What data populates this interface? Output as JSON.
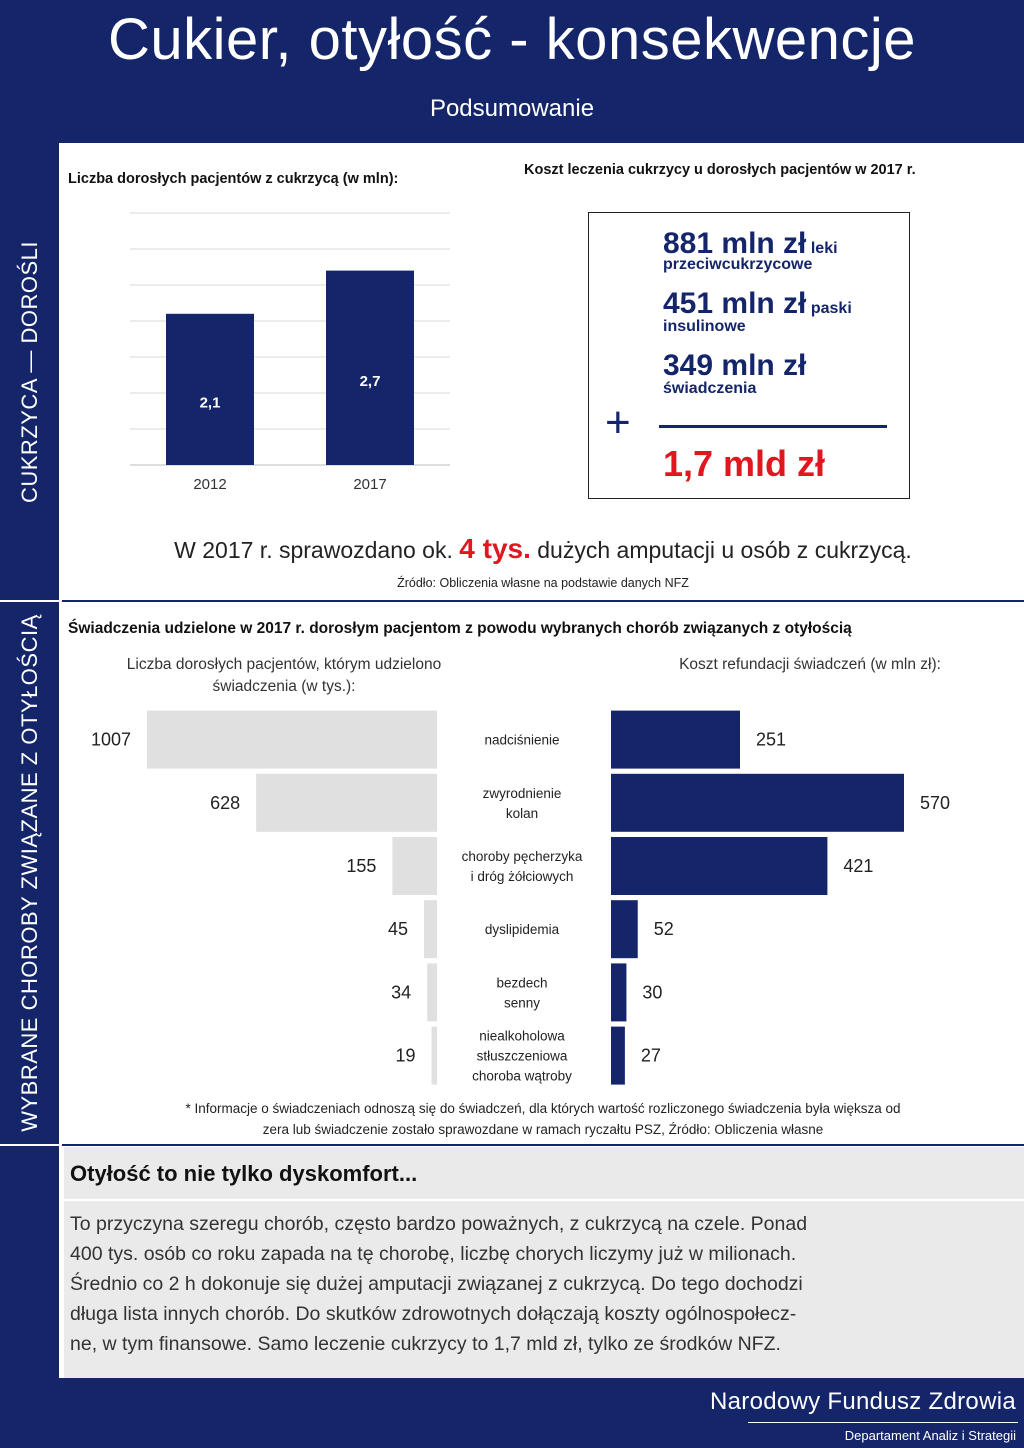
{
  "header": {
    "title": "Cukier, otyłość - konsekwencje",
    "subtitle": "Podsumowanie"
  },
  "sidebar": {
    "section1": "CUKRZYCA — DOROŚLI",
    "section2": "WYBRANE CHOROBY ZWIĄZANE Z OTYŁOŚCIĄ"
  },
  "diabetes": {
    "patients_title": "Liczba dorosłych pacjentów z cukrzycą (w mln):",
    "cost_title": "Koszt leczenia cukrzycy u dorosłych pacjentów w 2017 r.",
    "costs": [
      {
        "amount": "881 mln zł",
        "label_a": "leki",
        "label_b": "przeciwcukrzycowe"
      },
      {
        "amount": "451 mln zł",
        "label_a": "paski",
        "label_b": "insulinowe"
      },
      {
        "amount": "349 mln zł",
        "label_a": "",
        "label_b": "świadczenia"
      }
    ],
    "total": "1,7 mld zł",
    "amputation_before": "W 2017 r. sprawozdano ok.",
    "amputation_value": "4 tys.",
    "amputation_after": "dużych amputacji u osób z cukrzycą.",
    "source": "Źródło: Obliczenia własne na podstawie danych NFZ"
  },
  "obesity": {
    "title": "Świadczenia udzielone w 2017 r. dorosłym pacjentom z powodu wybranych chorób związanych z otyłością",
    "left_header_1": "Liczba dorosłych pacjentów, którym udzielono",
    "left_header_2": "świadczenia (w tys.):",
    "right_header": "Koszt refundacji świadczeń (w mln zł):",
    "footnote_1": "* Informacje o świadczeniach odnoszą się do świadczeń, dla których wartość rozliczonego świadczenia była większa od",
    "footnote_2": "zera lub świadczenie zostało sprawozdane w ramach ryczałtu PSZ,  Źródło: Obliczenia własne"
  },
  "chart_data": [
    {
      "type": "bar",
      "title": "Liczba dorosłych pacjentów z cukrzycą (w mln):",
      "categories": [
        "2012",
        "2017"
      ],
      "values": [
        2.1,
        2.7
      ],
      "value_labels": [
        "2,1",
        "2,7"
      ],
      "ylim": [
        0,
        3.5
      ],
      "grid": true,
      "colors": [
        "#15256a"
      ]
    },
    {
      "type": "bar",
      "orientation": "horizontal-butterfly",
      "title": "Świadczenia udzielone w 2017 r. dorosłym pacjentom z powodu wybranych chorób związanych z otyłością",
      "categories": [
        [
          "nadciśnienie"
        ],
        [
          "zwyrodnienie",
          "kolan"
        ],
        [
          "choroby pęcherzyka",
          "i dróg żółciowych"
        ],
        [
          "dyslipidemia"
        ],
        [
          "bezdech",
          "senny"
        ],
        [
          "niealkoholowa",
          "stłuszczeniowa",
          "choroba wątroby"
        ]
      ],
      "series": [
        {
          "values": [
            1007,
            628,
            155,
            45,
            34,
            19
          ],
          "color": "#e0e0e0"
        },
        {
          "values": [
            251,
            570,
            421,
            52,
            30,
            27
          ],
          "color": "#15256a"
        }
      ]
    }
  ],
  "info": {
    "title": "Otyłość to nie tylko dyskomfort...",
    "lines": [
      "To przyczyna szeregu chorób, często bardzo poważnych, z cukrzycą na czele. Ponad",
      "400 tys. osób co roku zapada na tę chorobę, liczbę chorych liczymy już w milionach.",
      "Średnio co 2 h dokonuje się dużej amputacji związanej z cukrzycą. Do tego dochodzi",
      "długa lista innych chorób. Do skutków zdrowotnych dołączają koszty ogólnospołecz-",
      "ne, w tym finansowe. Samo leczenie cukrzycy to 1,7 mld zł, tylko ze środków NFZ."
    ]
  },
  "footer": {
    "org": "Narodowy Fundusz Zdrowia",
    "dept": "Departament Analiz i Strategii"
  },
  "colors": {
    "navy": "#15256a",
    "red": "#e0171f",
    "gray_bar": "#e0e0e0"
  }
}
